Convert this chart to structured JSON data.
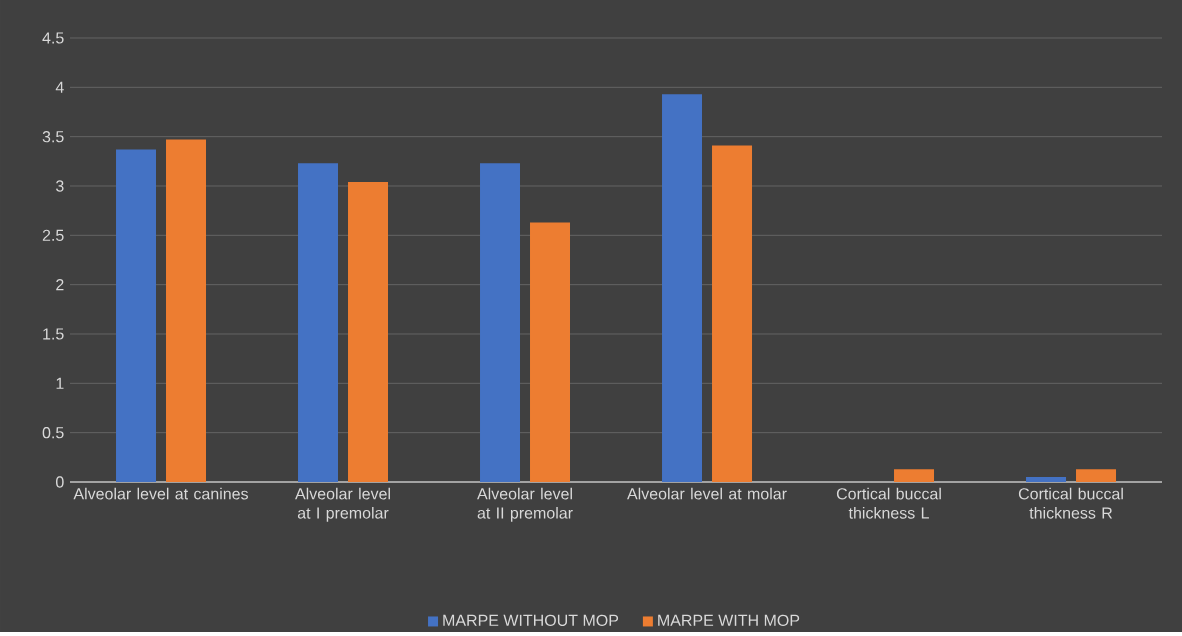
{
  "chart_data": {
    "type": "bar",
    "categories": [
      "Alveolar level at canines",
      "Alveolar level at I premolar",
      "Alveolar level at II premolar",
      "Alveolar level at molar",
      "Cortical buccal thickness L",
      "Cortical buccal thickness R"
    ],
    "series": [
      {
        "name": "MARPE WITHOUT MOP",
        "color": "#4472c4",
        "values": [
          3.37,
          3.23,
          3.23,
          3.93,
          0,
          0.05
        ]
      },
      {
        "name": "MARPE WITH MOP",
        "color": "#ed7d31",
        "values": [
          3.47,
          3.04,
          2.63,
          3.41,
          0.13,
          0.13
        ]
      }
    ],
    "ylim": [
      0,
      4.5
    ],
    "yticks": [
      0,
      0.5,
      1,
      1.5,
      2,
      2.5,
      3,
      3.5,
      4,
      4.5
    ],
    "grid": "y",
    "legend": "bottom"
  }
}
